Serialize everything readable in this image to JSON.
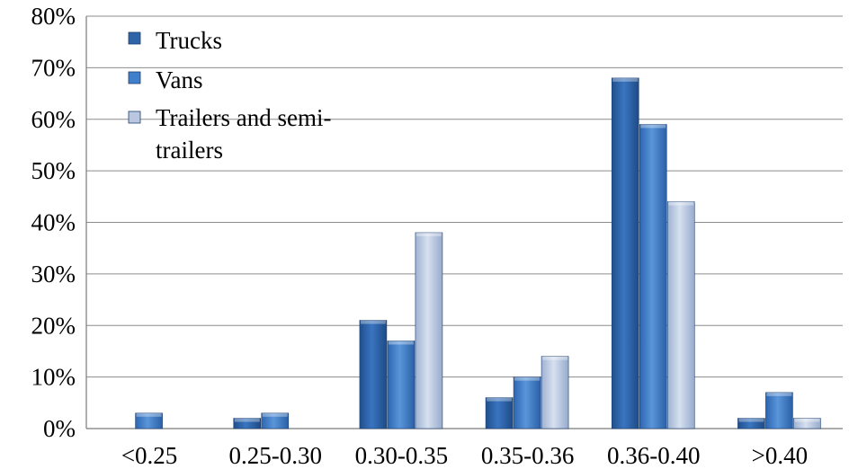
{
  "chart_data": {
    "type": "bar",
    "categories": [
      "<0.25",
      "0.25-0.30",
      "0.30-0.35",
      "0.35-0.36",
      "0.36-0.40",
      ">0.40"
    ],
    "series": [
      {
        "name": "Trucks",
        "values": [
          0,
          2,
          21,
          6,
          68,
          2
        ]
      },
      {
        "name": "Vans",
        "values": [
          3,
          3,
          17,
          10,
          59,
          7
        ]
      },
      {
        "name": "Trailers and semi-trailers",
        "values": [
          0,
          0,
          38,
          14,
          44,
          2
        ]
      }
    ],
    "ylim": [
      0,
      80
    ],
    "yticks": [
      "0%",
      "10%",
      "20%",
      "30%",
      "40%",
      "50%",
      "60%",
      "70%",
      "80%"
    ],
    "grid": true,
    "legend_position": "top-left",
    "colors": {
      "Trucks": "#2f65a8",
      "Vans": "#3f7fcb",
      "Trailers and semi-trailers": "#b9c8e0"
    }
  }
}
